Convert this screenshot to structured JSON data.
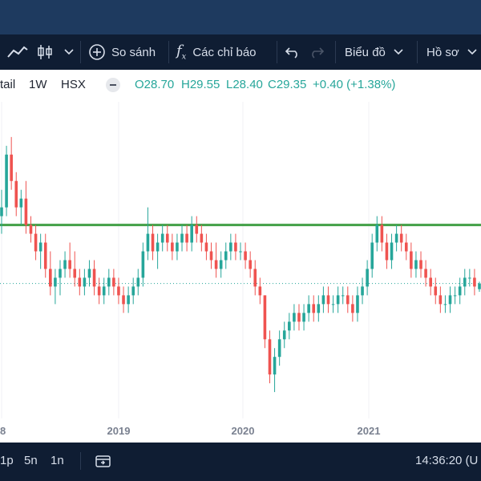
{
  "toolbar": {
    "compare_label": "So sánh",
    "indicators_label": "Các chỉ báo",
    "chart_label": "Biểu đồ",
    "profile_label": "Hồ sơ"
  },
  "symbol": {
    "name": "tail",
    "interval": "1W",
    "exchange": "HSX"
  },
  "ohlc": {
    "open": "O28.70",
    "high": "H29.55",
    "low": "L28.40",
    "close": "C29.35",
    "change": "+0.40 (+1.38%)"
  },
  "colors": {
    "up": "#26a69a",
    "down": "#ef5350",
    "hline": "#43a047",
    "toolbar_bg": "#0f1d33",
    "topbar_bg": "#1e3a5f"
  },
  "chart_data": {
    "type": "candlestick",
    "x_tick_labels": [
      "8",
      "2019",
      "2020",
      "2021"
    ],
    "horizontal_line": 36.0,
    "dotted_last_price_line": 29.35,
    "candles": [
      {
        "o": 37,
        "h": 40,
        "l": 35,
        "c": 38
      },
      {
        "o": 38,
        "h": 45,
        "l": 37,
        "c": 44
      },
      {
        "o": 44,
        "h": 46,
        "l": 40,
        "c": 41
      },
      {
        "o": 41,
        "h": 42,
        "l": 37,
        "c": 38
      },
      {
        "o": 38,
        "h": 40,
        "l": 36,
        "c": 39
      },
      {
        "o": 39,
        "h": 41,
        "l": 35,
        "c": 36
      },
      {
        "o": 36,
        "h": 37,
        "l": 34,
        "c": 35
      },
      {
        "o": 35,
        "h": 36,
        "l": 32,
        "c": 33
      },
      {
        "o": 33,
        "h": 35,
        "l": 31,
        "c": 34
      },
      {
        "o": 34,
        "h": 35,
        "l": 30,
        "c": 31
      },
      {
        "o": 31,
        "h": 33,
        "l": 28,
        "c": 29
      },
      {
        "o": 29,
        "h": 31,
        "l": 27,
        "c": 30
      },
      {
        "o": 30,
        "h": 32,
        "l": 28,
        "c": 31
      },
      {
        "o": 31,
        "h": 33,
        "l": 30,
        "c": 32
      },
      {
        "o": 32,
        "h": 34,
        "l": 30,
        "c": 31
      },
      {
        "o": 31,
        "h": 33,
        "l": 29,
        "c": 30
      },
      {
        "o": 30,
        "h": 31,
        "l": 28,
        "c": 29
      },
      {
        "o": 29,
        "h": 31,
        "l": 28,
        "c": 30
      },
      {
        "o": 30,
        "h": 32,
        "l": 29,
        "c": 31
      },
      {
        "o": 31,
        "h": 32,
        "l": 28,
        "c": 29
      },
      {
        "o": 29,
        "h": 30,
        "l": 27,
        "c": 28
      },
      {
        "o": 28,
        "h": 30,
        "l": 27,
        "c": 29
      },
      {
        "o": 29,
        "h": 31,
        "l": 28,
        "c": 30
      },
      {
        "o": 30,
        "h": 31,
        "l": 28,
        "c": 29
      },
      {
        "o": 29,
        "h": 30,
        "l": 27,
        "c": 28
      },
      {
        "o": 28,
        "h": 29,
        "l": 26,
        "c": 27
      },
      {
        "o": 27,
        "h": 29,
        "l": 26,
        "c": 28
      },
      {
        "o": 28,
        "h": 30,
        "l": 27,
        "c": 29
      },
      {
        "o": 29,
        "h": 31,
        "l": 28,
        "c": 30
      },
      {
        "o": 30,
        "h": 34,
        "l": 29,
        "c": 33
      },
      {
        "o": 33,
        "h": 38,
        "l": 32,
        "c": 35
      },
      {
        "o": 35,
        "h": 36,
        "l": 32,
        "c": 33
      },
      {
        "o": 33,
        "h": 35,
        "l": 31,
        "c": 34
      },
      {
        "o": 34,
        "h": 36,
        "l": 33,
        "c": 35
      },
      {
        "o": 35,
        "h": 36,
        "l": 33,
        "c": 34
      },
      {
        "o": 34,
        "h": 35,
        "l": 32,
        "c": 33
      },
      {
        "o": 33,
        "h": 35,
        "l": 32,
        "c": 34
      },
      {
        "o": 34,
        "h": 36,
        "l": 33,
        "c": 35
      },
      {
        "o": 35,
        "h": 36,
        "l": 33,
        "c": 34
      },
      {
        "o": 34,
        "h": 37,
        "l": 33,
        "c": 36
      },
      {
        "o": 36,
        "h": 37,
        "l": 34,
        "c": 35
      },
      {
        "o": 35,
        "h": 36,
        "l": 33,
        "c": 34
      },
      {
        "o": 34,
        "h": 35,
        "l": 32,
        "c": 33
      },
      {
        "o": 33,
        "h": 34,
        "l": 31,
        "c": 32
      },
      {
        "o": 32,
        "h": 34,
        "l": 30,
        "c": 31
      },
      {
        "o": 31,
        "h": 33,
        "l": 30,
        "c": 32
      },
      {
        "o": 32,
        "h": 34,
        "l": 31,
        "c": 33
      },
      {
        "o": 33,
        "h": 35,
        "l": 32,
        "c": 34
      },
      {
        "o": 34,
        "h": 35,
        "l": 32,
        "c": 33
      },
      {
        "o": 33,
        "h": 34,
        "l": 32,
        "c": 33
      },
      {
        "o": 33,
        "h": 34,
        "l": 31,
        "c": 32
      },
      {
        "o": 32,
        "h": 33,
        "l": 30,
        "c": 31
      },
      {
        "o": 31,
        "h": 32,
        "l": 28,
        "c": 29
      },
      {
        "o": 29,
        "h": 30,
        "l": 27,
        "c": 28
      },
      {
        "o": 28,
        "h": 28,
        "l": 22,
        "c": 23
      },
      {
        "o": 23,
        "h": 24,
        "l": 18,
        "c": 19
      },
      {
        "o": 19,
        "h": 22,
        "l": 17,
        "c": 21
      },
      {
        "o": 21,
        "h": 24,
        "l": 20,
        "c": 23
      },
      {
        "o": 23,
        "h": 25,
        "l": 22,
        "c": 24
      },
      {
        "o": 24,
        "h": 26,
        "l": 23,
        "c": 25
      },
      {
        "o": 25,
        "h": 27,
        "l": 24,
        "c": 26
      },
      {
        "o": 26,
        "h": 27,
        "l": 24,
        "c": 25
      },
      {
        "o": 25,
        "h": 27,
        "l": 24,
        "c": 26
      },
      {
        "o": 26,
        "h": 28,
        "l": 25,
        "c": 27
      },
      {
        "o": 27,
        "h": 28,
        "l": 25,
        "c": 26
      },
      {
        "o": 26,
        "h": 28,
        "l": 25,
        "c": 27
      },
      {
        "o": 27,
        "h": 29,
        "l": 26,
        "c": 28
      },
      {
        "o": 28,
        "h": 29,
        "l": 26,
        "c": 27
      },
      {
        "o": 27,
        "h": 28,
        "l": 26,
        "c": 27
      },
      {
        "o": 27,
        "h": 29,
        "l": 26,
        "c": 28
      },
      {
        "o": 28,
        "h": 29,
        "l": 27,
        "c": 28
      },
      {
        "o": 28,
        "h": 29,
        "l": 26,
        "c": 27
      },
      {
        "o": 27,
        "h": 28,
        "l": 25,
        "c": 26
      },
      {
        "o": 26,
        "h": 29,
        "l": 25,
        "c": 28
      },
      {
        "o": 28,
        "h": 30,
        "l": 27,
        "c": 29
      },
      {
        "o": 29,
        "h": 32,
        "l": 28,
        "c": 31
      },
      {
        "o": 31,
        "h": 35,
        "l": 30,
        "c": 34
      },
      {
        "o": 34,
        "h": 37,
        "l": 33,
        "c": 36
      },
      {
        "o": 36,
        "h": 37,
        "l": 33,
        "c": 34
      },
      {
        "o": 34,
        "h": 35,
        "l": 31,
        "c": 32
      },
      {
        "o": 32,
        "h": 35,
        "l": 31,
        "c": 34
      },
      {
        "o": 34,
        "h": 36,
        "l": 33,
        "c": 35
      },
      {
        "o": 35,
        "h": 36,
        "l": 33,
        "c": 34
      },
      {
        "o": 34,
        "h": 35,
        "l": 32,
        "c": 33
      },
      {
        "o": 33,
        "h": 34,
        "l": 30,
        "c": 31
      },
      {
        "o": 31,
        "h": 33,
        "l": 30,
        "c": 32
      },
      {
        "o": 32,
        "h": 33,
        "l": 30,
        "c": 31
      },
      {
        "o": 31,
        "h": 32,
        "l": 29,
        "c": 30
      },
      {
        "o": 30,
        "h": 31,
        "l": 28,
        "c": 29
      },
      {
        "o": 29,
        "h": 30,
        "l": 27,
        "c": 28
      },
      {
        "o": 28,
        "h": 29,
        "l": 26,
        "c": 27
      },
      {
        "o": 27,
        "h": 28,
        "l": 26,
        "c": 27
      },
      {
        "o": 27,
        "h": 29,
        "l": 26,
        "c": 28
      },
      {
        "o": 28,
        "h": 29,
        "l": 27,
        "c": 28
      },
      {
        "o": 28,
        "h": 30,
        "l": 27,
        "c": 29
      },
      {
        "o": 29,
        "h": 31,
        "l": 28,
        "c": 30
      },
      {
        "o": 30,
        "h": 31,
        "l": 29,
        "c": 30
      },
      {
        "o": 30,
        "h": 31,
        "l": 28,
        "c": 29
      },
      {
        "o": 28.7,
        "h": 29.55,
        "l": 28.4,
        "c": 29.35
      }
    ]
  }
}
